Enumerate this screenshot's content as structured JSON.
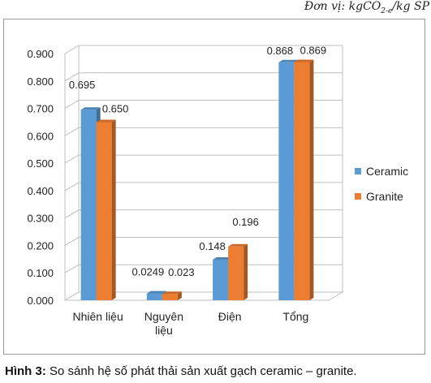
{
  "unit_label": {
    "prefix": "Đơn vị: kgCO",
    "sub": "2-e",
    "suffix": "/kg SP"
  },
  "caption": {
    "label": "Hình 3:",
    "text": " So sánh hệ số phát thải sản xuất gạch ceramic – granite."
  },
  "chart_data": {
    "type": "bar",
    "style": "3d-clustered",
    "categories": [
      "Nhiên liệu",
      "Nguyên liệu",
      "Điện",
      "Tổng"
    ],
    "series": [
      {
        "name": "Ceramic",
        "values": [
          0.695,
          0.0249,
          0.148,
          0.868
        ],
        "labels": [
          "0.695",
          "0.0249",
          "0.148",
          "0.868"
        ],
        "color": "#5b9bd5"
      },
      {
        "name": "Granite",
        "values": [
          0.65,
          0.023,
          0.196,
          0.869
        ],
        "labels": [
          "0.650",
          "0.023",
          "0.196",
          "0.869"
        ],
        "color": "#ed7d31"
      }
    ],
    "yticks": [
      "0.000",
      "0.100",
      "0.200",
      "0.300",
      "0.400",
      "0.500",
      "0.600",
      "0.700",
      "0.800",
      "0.900"
    ],
    "ylim": [
      0,
      0.9
    ],
    "grid": true,
    "legend": "right"
  }
}
